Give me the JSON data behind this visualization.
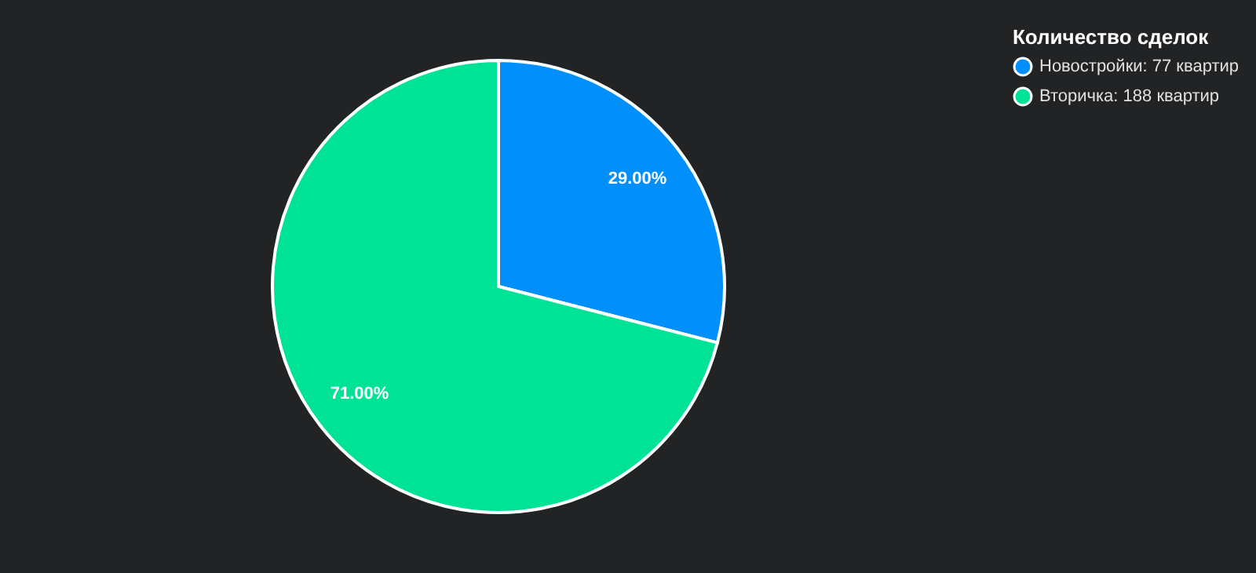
{
  "chart_data": {
    "type": "pie",
    "legend_title": "Количество сделок",
    "categories": [
      "Новостройки: 77 квартир",
      "Вторичка: 188 квартир"
    ],
    "values": [
      29,
      71
    ],
    "colors": [
      "#008ffb",
      "#00e396"
    ],
    "value_labels": [
      "29.00%",
      "71.00%"
    ],
    "legend": "top right"
  }
}
